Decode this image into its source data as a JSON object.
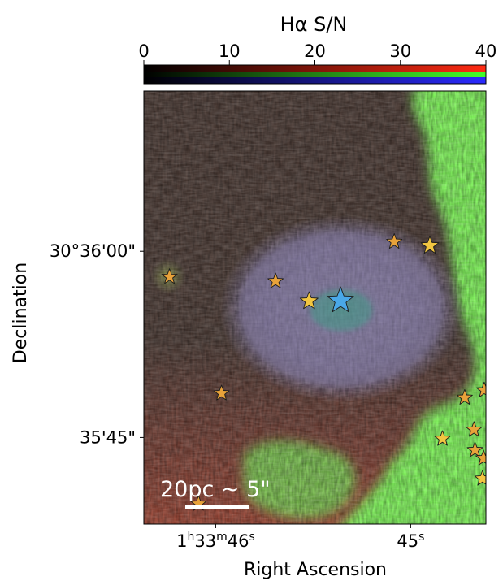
{
  "chart_data": {
    "type": "heatmap",
    "colorbar": {
      "title": "Hα S/N",
      "ticks": [
        0,
        10,
        20,
        30,
        40
      ],
      "range": [
        0,
        40
      ],
      "channels": [
        "red",
        "green",
        "blue"
      ]
    },
    "xlabel": "Right Ascension",
    "ylabel": "Declination",
    "x_ticks": [
      {
        "label": "1h33m46s",
        "base": "1",
        "h": "h",
        "m": "33",
        "mm": "m",
        "s": "46",
        "ss": "s",
        "tick": 0.21
      },
      {
        "label": "45s",
        "base": "45",
        "ss": "s",
        "tick": 0.78
      }
    ],
    "y_ticks": [
      {
        "label": "30°36'00\"",
        "tick": 0.37
      },
      {
        "label": "35'45\"",
        "tick": 0.8
      }
    ],
    "scale_bar": {
      "label": "20pc ~ 5\""
    },
    "stars": [
      {
        "u": 0.575,
        "v": 0.484,
        "size": "large",
        "color": "#4aa8e8"
      },
      {
        "u": 0.483,
        "v": 0.485,
        "size": "medium",
        "color": "#f2c641"
      },
      {
        "u": 0.385,
        "v": 0.439,
        "size": "small",
        "color": "#e8a23a"
      },
      {
        "u": 0.075,
        "v": 0.429,
        "size": "small",
        "color": "#e8a23a"
      },
      {
        "u": 0.732,
        "v": 0.348,
        "size": "small",
        "color": "#e8a23a"
      },
      {
        "u": 0.836,
        "v": 0.357,
        "size": "medium",
        "color": "#f2c641"
      },
      {
        "u": 0.227,
        "v": 0.698,
        "size": "small",
        "color": "#e8a23a"
      },
      {
        "u": 0.938,
        "v": 0.708,
        "size": "small",
        "color": "#e8a23a"
      },
      {
        "u": 0.995,
        "v": 0.691,
        "size": "small",
        "color": "#e8a23a"
      },
      {
        "u": 0.873,
        "v": 0.803,
        "size": "small",
        "color": "#f2c641"
      },
      {
        "u": 0.965,
        "v": 0.782,
        "size": "small",
        "color": "#e8a23a"
      },
      {
        "u": 0.968,
        "v": 0.829,
        "size": "small",
        "color": "#e8a23a"
      },
      {
        "u": 0.993,
        "v": 0.848,
        "size": "small",
        "color": "#e8a23a"
      },
      {
        "u": 0.99,
        "v": 0.895,
        "size": "small",
        "color": "#f2c641"
      },
      {
        "u": 0.16,
        "v": 0.953,
        "size": "small",
        "color": "#e8a23a"
      }
    ]
  },
  "colors": {
    "background_dark": "#4a3a34",
    "halo_purple": "#7d7299",
    "core_teal": "#4e9a8c",
    "green_region": "#7ef05a",
    "red_noise": "#a0483c",
    "scale_bar": "#ffffff"
  }
}
